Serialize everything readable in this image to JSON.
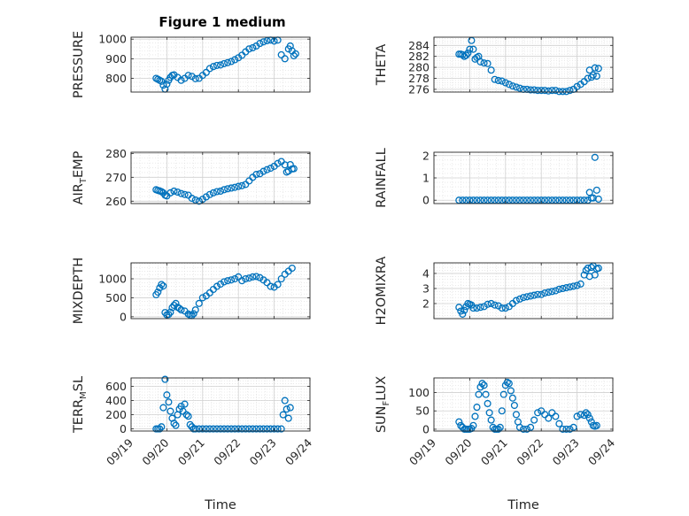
{
  "figure": {
    "title": "Figure 1 medium",
    "marker_color": "#0072BD",
    "xlabel": "Time",
    "xticks": [
      "09/19",
      "09/20",
      "09/21",
      "09/22",
      "09/23",
      "09/24"
    ]
  },
  "chart_data": [
    {
      "type": "scatter",
      "title": "Figure 1 medium",
      "ylabel": "PRESSURE",
      "ylim": [
        730,
        1010
      ],
      "yticks": [
        800,
        900,
        1000
      ],
      "xlim": [
        0,
        5
      ],
      "grid": "on",
      "x": [
        0.7,
        0.75,
        0.8,
        0.85,
        0.9,
        0.95,
        1.0,
        1.05,
        1.1,
        1.15,
        1.2,
        1.3,
        1.4,
        1.5,
        1.6,
        1.7,
        1.8,
        1.9,
        2.0,
        2.1,
        2.2,
        2.3,
        2.4,
        2.5,
        2.6,
        2.7,
        2.8,
        2.9,
        3.0,
        3.1,
        3.2,
        3.3,
        3.4,
        3.5,
        3.6,
        3.7,
        3.8,
        3.9,
        4.0,
        4.1,
        4.2,
        4.3,
        4.4,
        4.45,
        4.5,
        4.55,
        4.6
      ],
      "y": [
        800,
        795,
        790,
        785,
        765,
        745,
        770,
        790,
        805,
        815,
        818,
        805,
        790,
        800,
        815,
        810,
        798,
        800,
        815,
        830,
        850,
        860,
        866,
        868,
        875,
        880,
        886,
        895,
        905,
        918,
        935,
        950,
        956,
        965,
        978,
        986,
        992,
        995,
        990,
        995,
        920,
        900,
        950,
        965,
        940,
        915,
        925
      ]
    },
    {
      "type": "scatter",
      "ylabel": "THETA",
      "ylim": [
        275.5,
        285.5
      ],
      "yticks": [
        276,
        278,
        280,
        282,
        284
      ],
      "xlim": [
        0,
        5
      ],
      "grid": "on",
      "x": [
        0.7,
        0.75,
        0.8,
        0.85,
        0.9,
        0.95,
        1.0,
        1.05,
        1.1,
        1.15,
        1.2,
        1.25,
        1.3,
        1.4,
        1.5,
        1.6,
        1.7,
        1.8,
        1.9,
        2.0,
        2.1,
        2.2,
        2.3,
        2.4,
        2.5,
        2.6,
        2.7,
        2.8,
        2.9,
        3.0,
        3.1,
        3.2,
        3.3,
        3.4,
        3.5,
        3.6,
        3.7,
        3.8,
        3.9,
        4.0,
        4.1,
        4.2,
        4.3,
        4.35,
        4.4,
        4.45,
        4.5,
        4.55,
        4.6
      ],
      "y": [
        282.4,
        282.4,
        282.3,
        282.0,
        282.2,
        282.6,
        283.3,
        284.9,
        283.3,
        281.5,
        281.8,
        282.0,
        281.0,
        280.8,
        280.7,
        279.5,
        277.8,
        277.6,
        277.5,
        277.2,
        276.9,
        276.6,
        276.4,
        276.2,
        276.0,
        276.0,
        275.9,
        275.9,
        275.8,
        275.8,
        275.8,
        275.7,
        275.8,
        275.8,
        275.6,
        275.6,
        275.6,
        275.8,
        276.0,
        276.5,
        276.9,
        277.4,
        278.0,
        279.5,
        278.2,
        278.6,
        279.9,
        278.4,
        279.8
      ]
    },
    {
      "type": "scatter",
      "ylabel": "AIR_TEMP",
      "ylim": [
        259,
        280.5
      ],
      "yticks": [
        260,
        270,
        280
      ],
      "xlim": [
        0,
        5
      ],
      "grid": "on",
      "x": [
        0.7,
        0.75,
        0.8,
        0.85,
        0.9,
        0.95,
        1.0,
        1.1,
        1.2,
        1.3,
        1.4,
        1.5,
        1.6,
        1.7,
        1.8,
        1.9,
        2.0,
        2.1,
        2.2,
        2.3,
        2.4,
        2.5,
        2.6,
        2.7,
        2.8,
        2.9,
        3.0,
        3.1,
        3.2,
        3.3,
        3.4,
        3.5,
        3.6,
        3.7,
        3.8,
        3.9,
        4.0,
        4.1,
        4.2,
        4.3,
        4.35,
        4.4,
        4.45,
        4.5,
        4.55
      ],
      "y": [
        264.8,
        264.5,
        264.3,
        264.0,
        263.5,
        262.5,
        262.2,
        263.5,
        264.2,
        263.8,
        263.2,
        262.8,
        262.5,
        261.2,
        260.5,
        260.0,
        260.8,
        261.8,
        262.8,
        263.5,
        264.0,
        264.2,
        264.8,
        265.2,
        265.5,
        265.8,
        266.2,
        266.5,
        267.0,
        268.5,
        270.0,
        271.2,
        271.5,
        272.5,
        273.2,
        273.8,
        274.6,
        275.8,
        276.6,
        275.2,
        272.2,
        272.6,
        275.3,
        273.5,
        273.6
      ]
    },
    {
      "type": "scatter",
      "ylabel": "RAINFALL",
      "ylim": [
        -0.15,
        2.15
      ],
      "yticks": [
        0,
        1,
        2
      ],
      "xlim": [
        0,
        5
      ],
      "grid": "on",
      "x": [
        0.7,
        0.8,
        0.9,
        1.0,
        1.1,
        1.2,
        1.3,
        1.4,
        1.5,
        1.6,
        1.7,
        1.8,
        1.9,
        2.0,
        2.1,
        2.2,
        2.3,
        2.4,
        2.5,
        2.6,
        2.7,
        2.8,
        2.9,
        3.0,
        3.1,
        3.2,
        3.3,
        3.4,
        3.5,
        3.6,
        3.7,
        3.8,
        3.9,
        4.0,
        4.1,
        4.2,
        4.3,
        4.35,
        4.4,
        4.45,
        4.5,
        4.55,
        4.6
      ],
      "y": [
        0,
        0,
        0,
        0,
        0,
        0,
        0,
        0,
        0,
        0,
        0,
        0,
        0,
        0,
        0,
        0,
        0,
        0,
        0,
        0,
        0,
        0,
        0,
        0,
        0,
        0,
        0,
        0,
        0,
        0,
        0,
        0,
        0,
        0,
        0,
        0,
        0,
        0.35,
        0.1,
        0.1,
        1.92,
        0.45,
        0.05
      ]
    },
    {
      "type": "scatter",
      "ylabel": "MIXDEPTH",
      "ylim": [
        -50,
        1420
      ],
      "yticks": [
        0,
        500,
        1000
      ],
      "xlim": [
        0,
        5
      ],
      "grid": "on",
      "x": [
        0.7,
        0.75,
        0.8,
        0.85,
        0.9,
        0.95,
        1.0,
        1.05,
        1.1,
        1.15,
        1.2,
        1.25,
        1.3,
        1.35,
        1.4,
        1.5,
        1.6,
        1.65,
        1.7,
        1.75,
        1.8,
        1.9,
        2.0,
        2.1,
        2.2,
        2.3,
        2.4,
        2.5,
        2.6,
        2.7,
        2.8,
        2.9,
        3.0,
        3.1,
        3.2,
        3.3,
        3.4,
        3.5,
        3.6,
        3.7,
        3.8,
        3.9,
        4.0,
        4.1,
        4.2,
        4.3,
        4.4,
        4.5
      ],
      "y": [
        580,
        650,
        760,
        850,
        810,
        110,
        50,
        60,
        120,
        240,
        300,
        350,
        250,
        220,
        180,
        150,
        70,
        40,
        30,
        80,
        180,
        350,
        500,
        550,
        630,
        720,
        800,
        860,
        920,
        950,
        970,
        1000,
        1050,
        950,
        1000,
        1020,
        1050,
        1060,
        1030,
        970,
        900,
        800,
        780,
        850,
        1000,
        1120,
        1200,
        1280
      ]
    },
    {
      "type": "scatter",
      "ylabel": "H2OMIXRA",
      "ylim": [
        1.0,
        4.7
      ],
      "yticks": [
        2,
        3,
        4
      ],
      "xlim": [
        0,
        5
      ],
      "grid": "on",
      "x": [
        0.7,
        0.75,
        0.8,
        0.85,
        0.9,
        0.95,
        1.0,
        1.05,
        1.1,
        1.2,
        1.3,
        1.4,
        1.5,
        1.6,
        1.7,
        1.8,
        1.9,
        2.0,
        2.1,
        2.2,
        2.3,
        2.4,
        2.5,
        2.6,
        2.7,
        2.8,
        2.9,
        3.0,
        3.1,
        3.2,
        3.3,
        3.4,
        3.5,
        3.6,
        3.7,
        3.8,
        3.9,
        4.0,
        4.1,
        4.2,
        4.25,
        4.3,
        4.35,
        4.4,
        4.45,
        4.5,
        4.55,
        4.6
      ],
      "y": [
        1.75,
        1.5,
        1.3,
        1.55,
        1.8,
        2.0,
        1.95,
        1.9,
        1.7,
        1.7,
        1.75,
        1.8,
        1.95,
        2.0,
        1.9,
        1.85,
        1.7,
        1.7,
        1.8,
        2.0,
        2.2,
        2.3,
        2.4,
        2.45,
        2.5,
        2.55,
        2.6,
        2.6,
        2.7,
        2.75,
        2.8,
        2.85,
        2.95,
        3.0,
        3.05,
        3.1,
        3.15,
        3.2,
        3.3,
        3.9,
        4.2,
        4.35,
        3.8,
        4.4,
        4.5,
        3.9,
        4.3,
        4.35
      ]
    },
    {
      "type": "scatter",
      "ylabel": "TERR_MSL",
      "ylim": [
        -30,
        720
      ],
      "yticks": [
        0,
        200,
        400,
        600
      ],
      "xlim": [
        0,
        5
      ],
      "grid": "on",
      "x": [
        0.7,
        0.75,
        0.8,
        0.85,
        0.9,
        0.95,
        1.0,
        1.05,
        1.1,
        1.15,
        1.2,
        1.25,
        1.3,
        1.35,
        1.4,
        1.45,
        1.5,
        1.55,
        1.6,
        1.65,
        1.7,
        1.75,
        1.8,
        1.9,
        2.0,
        2.1,
        2.2,
        2.3,
        2.4,
        2.5,
        2.6,
        2.7,
        2.8,
        2.9,
        3.0,
        3.1,
        3.2,
        3.3,
        3.4,
        3.5,
        3.6,
        3.7,
        3.8,
        3.9,
        4.0,
        4.1,
        4.2,
        4.25,
        4.3,
        4.35,
        4.4,
        4.45
      ],
      "y": [
        0,
        0,
        0,
        30,
        300,
        700,
        480,
        380,
        250,
        150,
        80,
        50,
        200,
        280,
        320,
        250,
        350,
        200,
        180,
        60,
        30,
        0,
        0,
        0,
        0,
        0,
        0,
        0,
        0,
        0,
        0,
        0,
        0,
        0,
        0,
        0,
        0,
        0,
        0,
        0,
        0,
        0,
        0,
        0,
        0,
        0,
        0,
        200,
        400,
        280,
        150,
        300
      ]
    },
    {
      "type": "scatter",
      "ylabel": "SUN_FLUX",
      "ylim": [
        -5,
        140
      ],
      "yticks": [
        0,
        50,
        100
      ],
      "xlim": [
        0,
        5
      ],
      "grid": "on",
      "x": [
        0.7,
        0.75,
        0.8,
        0.85,
        0.9,
        0.95,
        1.0,
        1.05,
        1.1,
        1.15,
        1.2,
        1.25,
        1.3,
        1.35,
        1.4,
        1.45,
        1.5,
        1.55,
        1.6,
        1.65,
        1.7,
        1.75,
        1.8,
        1.85,
        1.9,
        1.95,
        2.0,
        2.05,
        2.1,
        2.15,
        2.2,
        2.25,
        2.3,
        2.35,
        2.4,
        2.5,
        2.6,
        2.7,
        2.8,
        2.9,
        3.0,
        3.1,
        3.2,
        3.3,
        3.4,
        3.5,
        3.6,
        3.7,
        3.8,
        3.9,
        4.0,
        4.1,
        4.2,
        4.25,
        4.3,
        4.35,
        4.4,
        4.45,
        4.5,
        4.55
      ],
      "y": [
        20,
        10,
        5,
        0,
        0,
        0,
        0,
        2,
        10,
        35,
        60,
        95,
        115,
        125,
        120,
        95,
        70,
        45,
        25,
        5,
        0,
        0,
        0,
        5,
        50,
        95,
        120,
        128,
        125,
        105,
        85,
        65,
        40,
        20,
        5,
        0,
        0,
        5,
        25,
        45,
        50,
        40,
        30,
        45,
        35,
        15,
        0,
        0,
        0,
        5,
        35,
        40,
        38,
        45,
        40,
        30,
        20,
        10,
        8,
        10
      ]
    }
  ]
}
